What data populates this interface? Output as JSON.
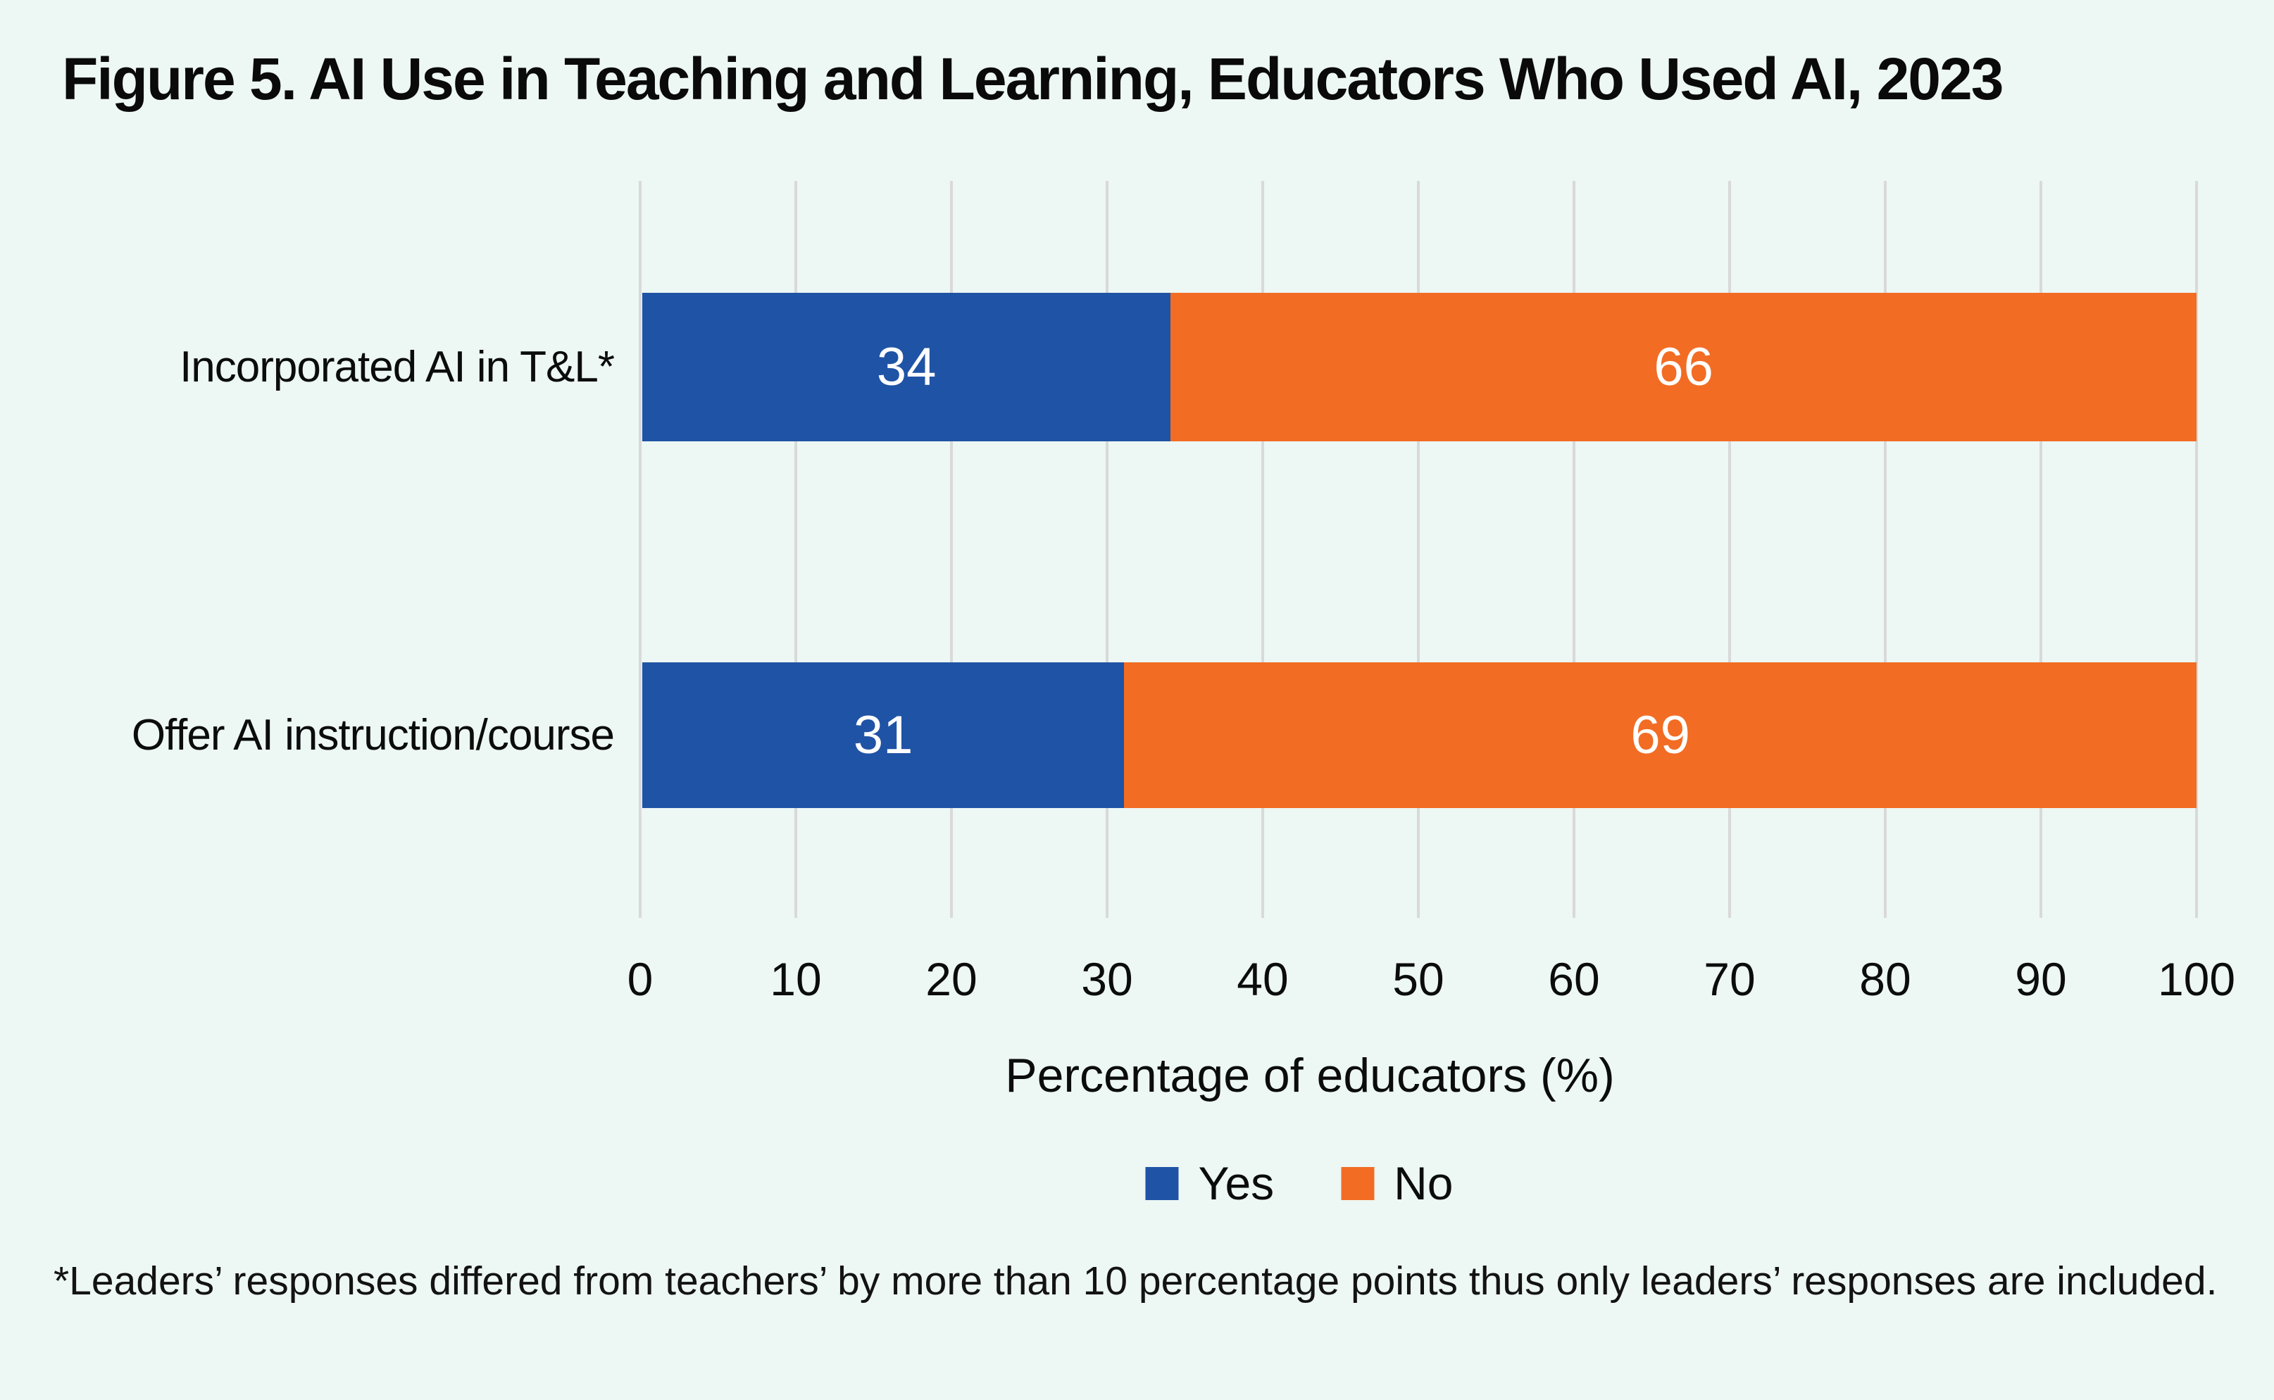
{
  "chart_data": {
    "type": "bar",
    "orientation": "horizontal",
    "stacked": true,
    "title": "Figure 5. AI Use in Teaching and Learning, Educators Who Used AI, 2023",
    "categories": [
      "Incorporated AI in T&L*",
      "Offer AI instruction/course"
    ],
    "series": [
      {
        "name": "Yes",
        "color": "#1F53A5",
        "values": [
          34,
          31
        ]
      },
      {
        "name": "No",
        "color": "#F26C24",
        "values": [
          66,
          69
        ]
      }
    ],
    "xlabel": "Percentage of educators (%)",
    "ylabel": "",
    "xlim": [
      0,
      100
    ],
    "xticks": [
      0,
      10,
      20,
      30,
      40,
      50,
      60,
      70,
      80,
      90,
      100
    ],
    "grid": "vertical",
    "grid_color": "#D9D9D9",
    "value_labels": "inside-center",
    "value_label_color": "#FFFFFF",
    "legend_position": "bottom",
    "background_color": "#EDF7F4"
  },
  "footnote": {
    "text": "*Leaders’ responses differed from teachers’ by more than 10 percentage points thus only leaders’ responses are included."
  }
}
